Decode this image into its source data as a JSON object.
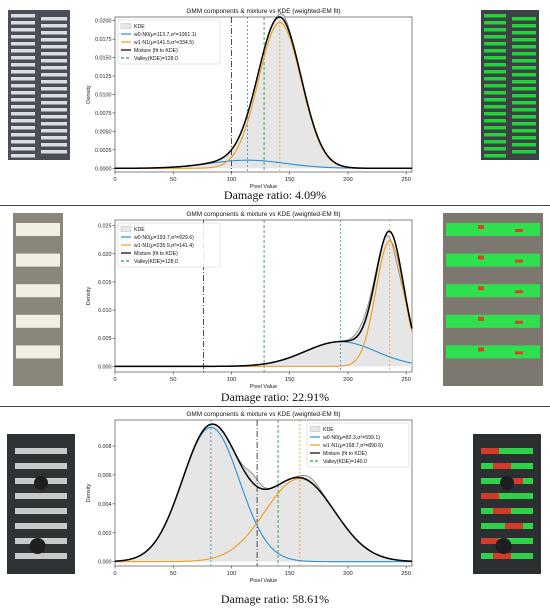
{
  "panels": [
    {
      "caption": "Damage ratio: 4.09%",
      "photo_left": {
        "kind": "stripes-white",
        "background": "#4a4f57",
        "stripe_color": "#d9dde2"
      },
      "photo_right": {
        "kind": "stripes-green",
        "background": "#3c4146",
        "stripe_color": "#22d33b"
      }
    },
    {
      "caption": "Damage ratio: 22.91%",
      "photo_left": {
        "kind": "bars-white",
        "background": "#8a867c",
        "stripe_color": "#f1eee6"
      },
      "photo_right": {
        "kind": "bars-green",
        "background": "#7c786f",
        "stripe_color": "#2fe04e"
      }
    },
    {
      "caption": "Damage ratio: 58.61%",
      "photo_left": {
        "kind": "dark-white",
        "background": "#2f3336",
        "stripe_color": "#c7cacb"
      },
      "photo_right": {
        "kind": "dark-mixed",
        "background": "#2c2f31",
        "stripe_color": "#2fd04a"
      }
    }
  ],
  "chart_data": [
    {
      "type": "line",
      "title": "GMM components & mixture vs KDE (weighted-EM fit)",
      "xlabel": "Pixel Value",
      "ylabel": "Density",
      "xlim": [
        0,
        255
      ],
      "ylim": [
        -0.0005,
        0.0205
      ],
      "xticks": [
        0,
        50,
        100,
        150,
        200,
        250
      ],
      "yticks": [
        0.0,
        0.0025,
        0.005,
        0.0075,
        0.01,
        0.0125,
        0.015,
        0.0175,
        0.02
      ],
      "ytick_labels": [
        "0.0000",
        "0.0025",
        "0.0050",
        "0.0075",
        "0.0100",
        "0.0125",
        "0.0150",
        "0.0175",
        "0.0200"
      ],
      "legend": "top-left",
      "components": [
        {
          "mu": 113.7,
          "var": 1061.1,
          "weight": 0.09,
          "label": "w0·N0(μ=113.7,σ²=1061.1)",
          "color": "#2a8fd6"
        },
        {
          "mu": 141.5,
          "var": 334.5,
          "weight": 0.905,
          "label": "w1·N1(μ=141.5,σ²=334.5)",
          "color": "#f29a1c"
        }
      ],
      "kde": {
        "label": "KDE",
        "fill": "#e6e6e6",
        "line": "#8a8a8a",
        "delta": [
          {
            "mu": 145,
            "sd": 4,
            "amp": 0.0006
          }
        ]
      },
      "mixture_label": "Mixture (fit to KDE)",
      "valley": {
        "x": 128.0,
        "label": "Valley(KDE)=128.0",
        "color": "#2e9e45"
      },
      "vlines": [
        {
          "x": 100,
          "color": "#222222",
          "dash": "6,2,1,2"
        },
        {
          "x": 113.7,
          "color": "#2a8fd6",
          "dash": "2,2"
        },
        {
          "x": 141.5,
          "color": "#f29a1c",
          "dash": "2,2"
        }
      ]
    },
    {
      "type": "line",
      "title": "GMM components & mixture vs KDE (weighted-EM fit)",
      "xlabel": "Pixel Value",
      "ylabel": "Density",
      "xlim": [
        0,
        255
      ],
      "ylim": [
        -0.001,
        0.026
      ],
      "xticks": [
        0,
        50,
        100,
        150,
        200,
        250
      ],
      "yticks": [
        0.0,
        0.005,
        0.01,
        0.015,
        0.02,
        0.025
      ],
      "ytick_labels": [
        "0.000",
        "0.005",
        "0.010",
        "0.015",
        "0.020",
        "0.025"
      ],
      "legend": "top-left",
      "components": [
        {
          "mu": 193.7,
          "var": 929.6,
          "weight": 0.335,
          "label": "w0·N0(μ=193.7,σ²=929.6)",
          "color": "#2a8fd6"
        },
        {
          "mu": 235.9,
          "var": 141.4,
          "weight": 0.665,
          "label": "w1·N1(μ=235.9,σ²=141.4)",
          "color": "#f29a1c"
        }
      ],
      "kde": {
        "label": "KDE",
        "fill": "#e6e6e6",
        "line": "#8a8a8a",
        "delta": [
          {
            "mu": 242,
            "sd": 5,
            "amp": -0.0025
          },
          {
            "mu": 215,
            "sd": 8,
            "amp": 0.0012
          }
        ]
      },
      "mixture_label": "Mixture (fit to KDE)",
      "valley": {
        "x": 128.0,
        "label": "Valley(KDE)=128.0",
        "color": "#2e9e45"
      },
      "vlines": [
        {
          "x": 76,
          "color": "#222222",
          "dash": "6,2,1,2"
        },
        {
          "x": 193.7,
          "color": "#2a8fd6",
          "dash": "2,2"
        },
        {
          "x": 235.9,
          "color": "#f29a1c",
          "dash": "2,2"
        }
      ]
    },
    {
      "type": "line",
      "title": "GMM components & mixture vs KDE (weighted-EM fit)",
      "xlabel": "Pixel Value",
      "ylabel": "Density",
      "xlim": [
        0,
        255
      ],
      "ylim": [
        -0.0003,
        0.0098
      ],
      "xticks": [
        0,
        50,
        100,
        150,
        200,
        250
      ],
      "yticks": [
        0.0,
        0.002,
        0.004,
        0.006,
        0.008
      ],
      "ytick_labels": [
        "0.000",
        "0.002",
        "0.004",
        "0.006",
        "0.008"
      ],
      "legend": "top-right",
      "components": [
        {
          "mu": 82.3,
          "var": 599.1,
          "weight": 0.57,
          "label": "w0·N0(μ=82.3,σ²=599.1)",
          "color": "#2a8fd6"
        },
        {
          "mu": 158.7,
          "var": 890.6,
          "weight": 0.43,
          "label": "w1·N1(μ=158.7,σ²=890.6)",
          "color": "#f29a1c"
        }
      ],
      "kde": {
        "label": "KDE",
        "fill": "#e6e6e6",
        "line": "#8a8a8a",
        "delta": [
          {
            "mu": 118,
            "sd": 6,
            "amp": 0.0006
          },
          {
            "mu": 168,
            "sd": 7,
            "amp": 0.0003
          }
        ]
      },
      "mixture_label": "Mixture (fit to KDE)",
      "valley": {
        "x": 140.0,
        "label": "Valley(KDE)=140.0",
        "color": "#2e9e45"
      },
      "vlines": [
        {
          "x": 122,
          "color": "#222222",
          "dash": "6,2,1,2"
        },
        {
          "x": 82.3,
          "color": "#2a8fd6",
          "dash": "2,2"
        },
        {
          "x": 158.7,
          "color": "#f29a1c",
          "dash": "2,2"
        }
      ]
    }
  ]
}
